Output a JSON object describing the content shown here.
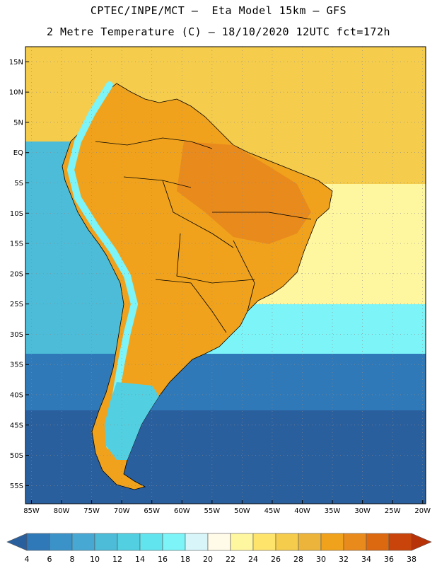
{
  "header": {
    "line1": "CPTEC/INPE/MCT –  Eta Model 15km – GFS",
    "line2": "2 Metre Temperature (C) – 18/10/2020 12UTC fct=172h"
  },
  "axes": {
    "lat_labels": [
      "15N",
      "10N",
      "5N",
      "EQ",
      "5S",
      "10S",
      "15S",
      "20S",
      "25S",
      "30S",
      "35S",
      "40S",
      "45S",
      "50S",
      "55S"
    ],
    "lat_values": [
      15,
      10,
      5,
      0,
      -5,
      -10,
      -15,
      -20,
      -25,
      -30,
      -35,
      -40,
      -45,
      -50,
      -55
    ],
    "lon_labels": [
      "85W",
      "80W",
      "75W",
      "70W",
      "65W",
      "60W",
      "55W",
      "50W",
      "45W",
      "40W",
      "35W",
      "30W",
      "25W",
      "20W"
    ],
    "lon_values": [
      -85,
      -80,
      -75,
      -70,
      -65,
      -60,
      -55,
      -50,
      -45,
      -40,
      -35,
      -30,
      -25,
      -20
    ],
    "lat_range": [
      -58,
      17.5
    ],
    "lon_range": [
      -86,
      -19.5
    ]
  },
  "colorbar": {
    "labels": [
      "4",
      "6",
      "8",
      "10",
      "12",
      "14",
      "16",
      "18",
      "20",
      "22",
      "24",
      "26",
      "28",
      "30",
      "32",
      "34",
      "36",
      "38"
    ],
    "colors": [
      "#2a5f9e",
      "#3079b8",
      "#3a92c8",
      "#48a8d4",
      "#4cbcd8",
      "#52d0e2",
      "#62e4ee",
      "#7cf4f8",
      "#d8f6fa",
      "#fffbe8",
      "#fff7a0",
      "#ffe46c",
      "#f5cc4c",
      "#ecb43a",
      "#f0a21c",
      "#e98a1c",
      "#dc6810",
      "#c8440a",
      "#b83208"
    ]
  },
  "map_colors": {
    "ocean_south": "#2a5f9e",
    "ocean_mid": "#3079b8",
    "ocean_pacific": "#4cbcd8",
    "ocean_pacific_n": "#62e4ee",
    "ocean_atl_s": "#7cf4f8",
    "ocean_atl_warm": "#fff7a0",
    "ocean_north": "#f5cc4c",
    "land_hot": "#e98a1c",
    "land_warm": "#f0a21c",
    "andes": "#7cf4f8",
    "patagonia": "#52d0e2",
    "border": "#000000",
    "grid": "#8a8a8a"
  }
}
